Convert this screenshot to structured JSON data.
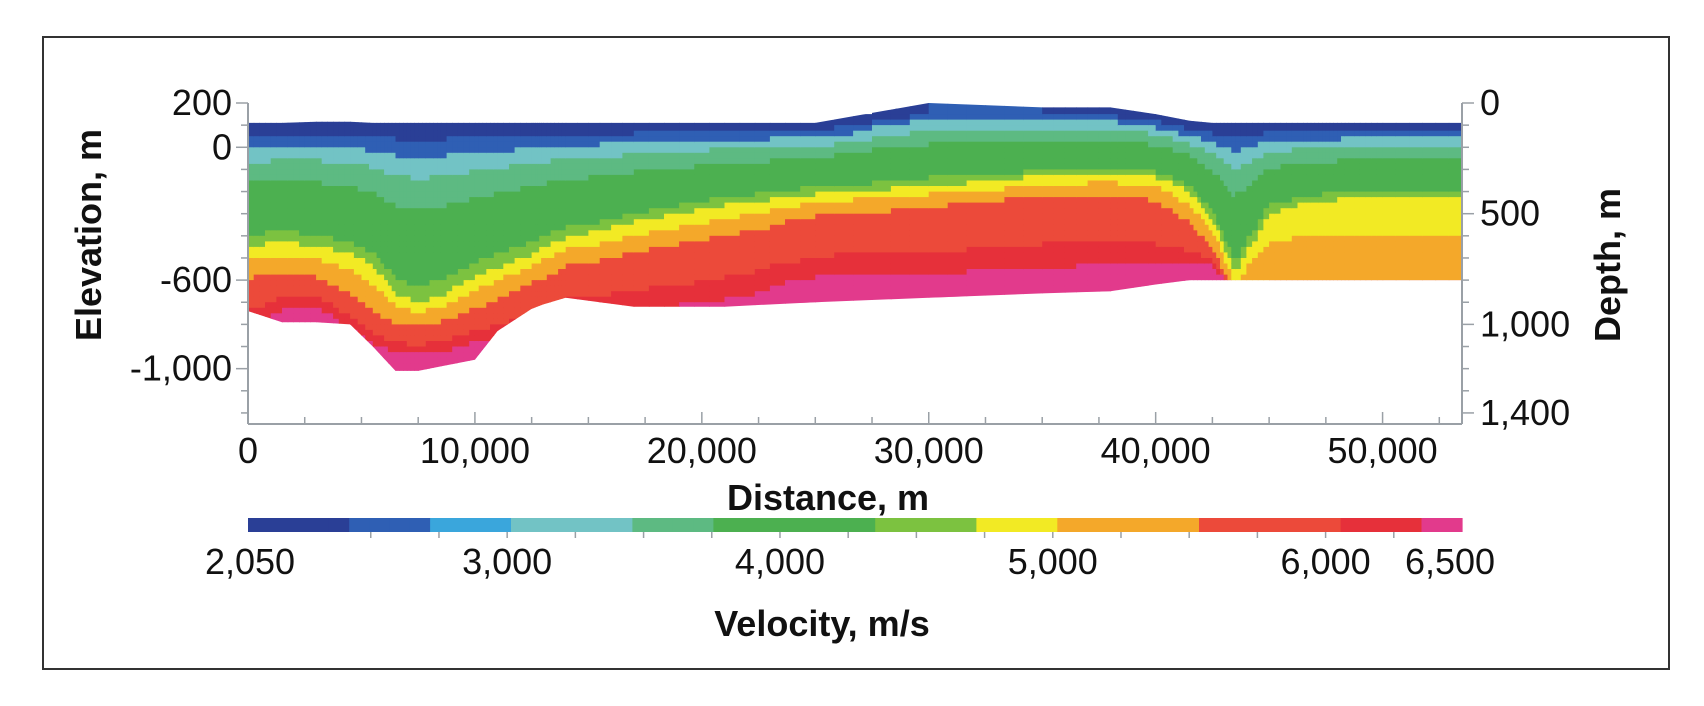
{
  "chart_data": {
    "type": "heatmap",
    "x_axis": {
      "label": "Distance, m",
      "range": [
        0,
        53500
      ],
      "ticks": [
        {
          "value": 0,
          "label": "0"
        },
        {
          "value": 10000,
          "label": "10,000"
        },
        {
          "value": 20000,
          "label": "20,000"
        },
        {
          "value": 30000,
          "label": "30,000"
        },
        {
          "value": 40000,
          "label": "40,000"
        },
        {
          "value": 50000,
          "label": "50,000"
        }
      ],
      "minor_step": 2500
    },
    "y_axis_left": {
      "label": "Elevation, m",
      "range": [
        -1250,
        200
      ],
      "ticks": [
        {
          "value": 200,
          "label": "200"
        },
        {
          "value": 0,
          "label": "0"
        },
        {
          "value": -600,
          "label": "-600"
        },
        {
          "value": -1000,
          "label": "-1,000"
        }
      ],
      "minor_step": 100
    },
    "y_axis_right": {
      "label": "Depth, m",
      "range": [
        0,
        1450
      ],
      "ticks": [
        {
          "value": 0,
          "label": "0"
        },
        {
          "value": 500,
          "label": "500"
        },
        {
          "value": 1000,
          "label": "1,000"
        },
        {
          "value": 1400,
          "label": "1,400"
        }
      ],
      "minor_step": 100
    },
    "colorbar": {
      "label": "Velocity, m/s",
      "range": [
        2050,
        6500
      ],
      "ticks": [
        {
          "value": 2050,
          "label": "2,050"
        },
        {
          "value": 3000,
          "label": "3,000"
        },
        {
          "value": 4000,
          "label": "4,000"
        },
        {
          "value": 5000,
          "label": "5,000"
        },
        {
          "value": 6000,
          "label": "6,000"
        },
        {
          "value": 6500,
          "label": "6,500"
        }
      ],
      "stops": [
        {
          "v": 2050,
          "c": "#2a3f96"
        },
        {
          "v": 2350,
          "c": "#2f5fb4"
        },
        {
          "v": 2700,
          "c": "#3aa6dc"
        },
        {
          "v": 3000,
          "c": "#72c3c5"
        },
        {
          "v": 3400,
          "c": "#5dba82"
        },
        {
          "v": 3700,
          "c": "#4cb050"
        },
        {
          "v": 4300,
          "c": "#7cc240"
        },
        {
          "v": 4650,
          "c": "#f2ea24"
        },
        {
          "v": 5000,
          "c": "#f4a82a"
        },
        {
          "v": 5500,
          "c": "#ec4a3a"
        },
        {
          "v": 6000,
          "c": "#e6303a"
        },
        {
          "v": 6300,
          "c": "#e23a8c"
        },
        {
          "v": 6500,
          "c": "#c85ab8"
        }
      ]
    },
    "profile": {
      "x": [
        0,
        1500,
        3000,
        4500,
        5500,
        6500,
        7500,
        8500,
        10000,
        11000,
        12500,
        13000,
        14000,
        17000,
        21000,
        25000,
        30000,
        35000,
        38000,
        40000,
        41500,
        42500,
        43500,
        45000,
        46500,
        47500,
        48500,
        50000,
        53500
      ],
      "surface_elevation": [
        110,
        110,
        115,
        115,
        110,
        110,
        110,
        110,
        110,
        110,
        110,
        110,
        110,
        110,
        110,
        110,
        200,
        180,
        180,
        150,
        120,
        110,
        110,
        110,
        110,
        110,
        110,
        110,
        110
      ],
      "yellow_top_elevation": [
        -430,
        -420,
        -430,
        -470,
        -520,
        -650,
        -690,
        -660,
        -570,
        -530,
        -470,
        -440,
        -400,
        -330,
        -250,
        -200,
        -160,
        -120,
        -110,
        -120,
        -190,
        -310,
        -560,
        -290,
        -240,
        -230,
        -220,
        -220,
        -220
      ],
      "red_top_elevation": [
        -580,
        -560,
        -570,
        -650,
        -730,
        -790,
        -800,
        -780,
        -720,
        -680,
        -600,
        -580,
        -530,
        -470,
        -390,
        -300,
        -260,
        -210,
        -200,
        -230,
        -330,
        -450,
        -650,
        -600,
        -600,
        -600,
        -600,
        -600,
        -600
      ],
      "magenta_top_elevation": [
        -800,
        -720,
        -700,
        -800,
        -880,
        -910,
        -920,
        -910,
        -870,
        -850,
        -820,
        -820,
        -740,
        -720,
        -680,
        -570,
        -560,
        -530,
        -520,
        -520,
        -520,
        -520,
        -650,
        -600,
        -600,
        -600,
        -600,
        -600,
        -600
      ],
      "model_bottom_elevation": [
        -740,
        -790,
        -790,
        -800,
        -900,
        -1010,
        -1010,
        -990,
        -960,
        -830,
        -730,
        -710,
        -680,
        -720,
        -720,
        -700,
        -680,
        -660,
        -650,
        -620,
        -600,
        -600,
        -600,
        -600,
        -600,
        -600,
        -600,
        -600,
        -600
      ]
    }
  }
}
